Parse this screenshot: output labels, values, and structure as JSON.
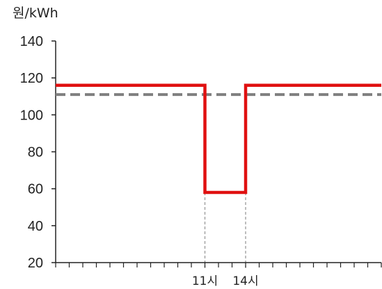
{
  "chart_data": {
    "type": "line",
    "ylabel": "원/kWh",
    "ylim": [
      20,
      140
    ],
    "yticks": [
      20,
      40,
      60,
      80,
      100,
      120,
      140
    ],
    "xlim": [
      0,
      24
    ],
    "x_annotations": [
      {
        "x": 11,
        "label": "11시"
      },
      {
        "x": 14,
        "label": "14시"
      }
    ],
    "series": [
      {
        "style": "solid",
        "color": "#e01010",
        "x": [
          0,
          11,
          11,
          14,
          14,
          24
        ],
        "y": [
          116,
          116,
          58,
          58,
          116,
          116
        ]
      },
      {
        "style": "dashed",
        "color": "#7f7f7f",
        "x": [
          0,
          24
        ],
        "y": [
          111,
          111
        ]
      }
    ],
    "grid": false,
    "legend": "none"
  }
}
